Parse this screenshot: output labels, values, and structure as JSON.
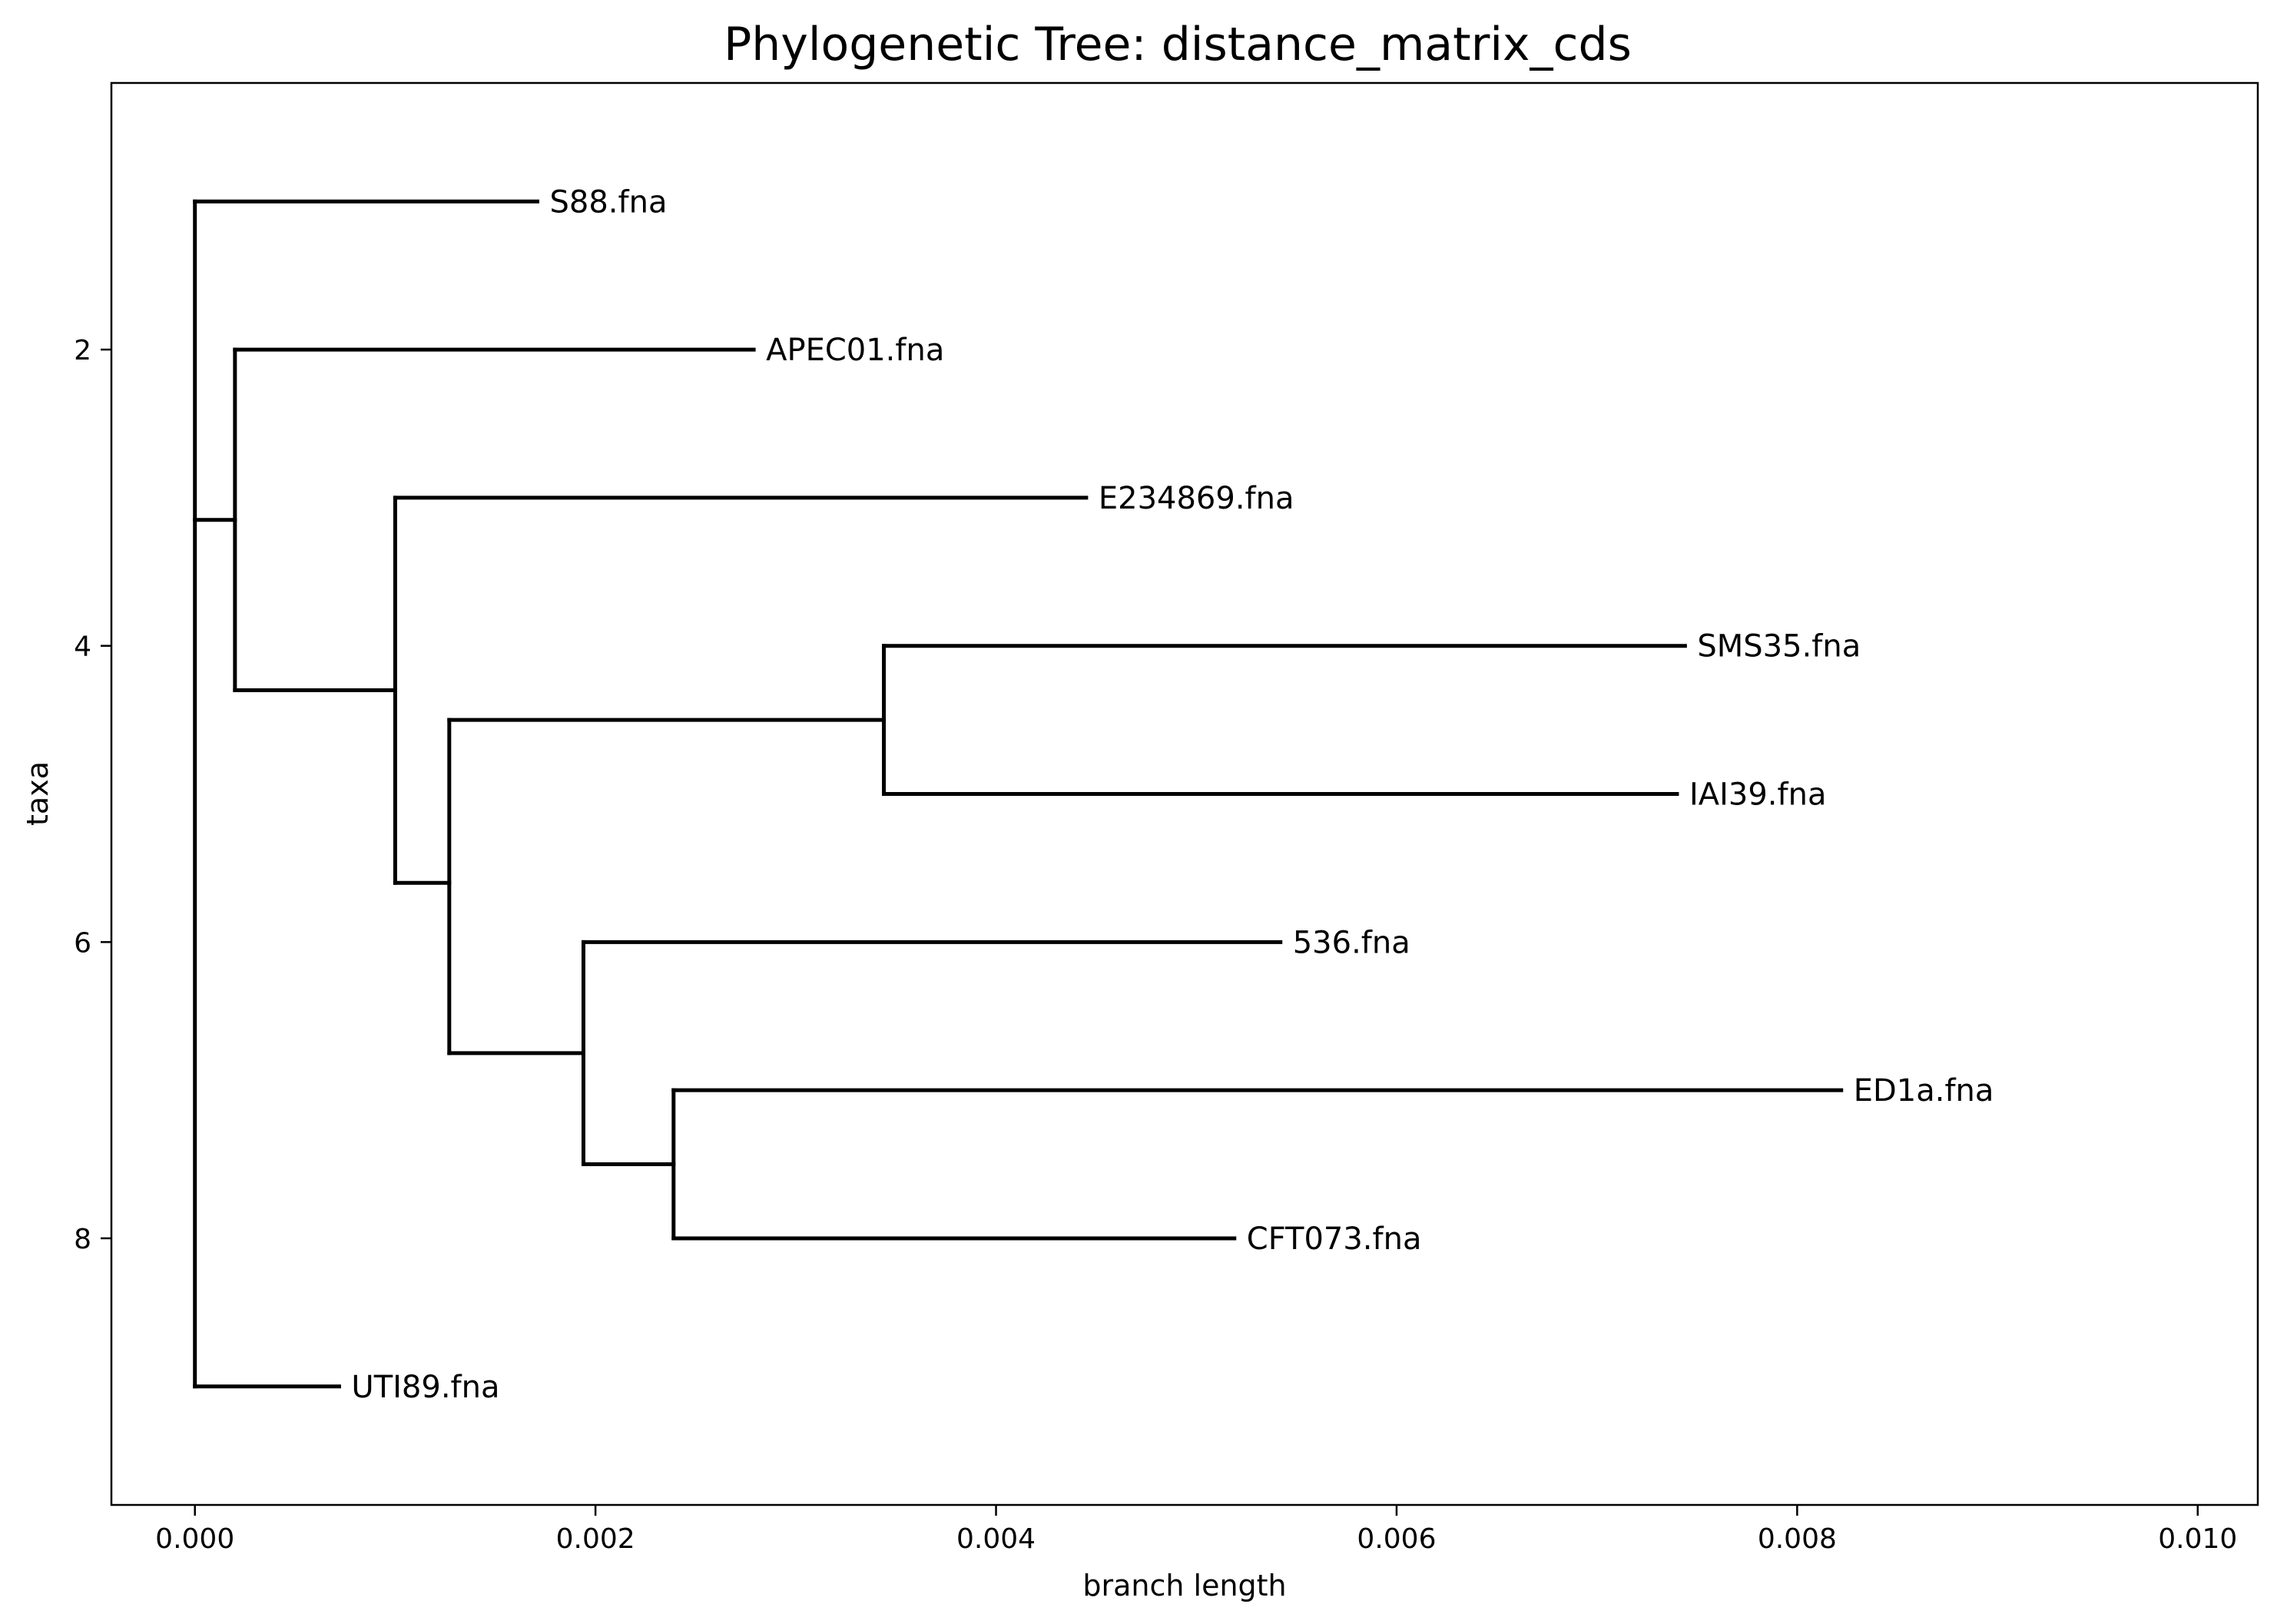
{
  "chart_data": {
    "type": "dendrogram",
    "title": "Phylogenetic Tree: distance_matrix_cds",
    "xlabel": "branch length",
    "ylabel": "taxa",
    "xlim": [
      -0.000417,
      0.0103
    ],
    "ylim": [
      9.8,
      0.2
    ],
    "x_ticks": [
      "0.000",
      "0.002",
      "0.004",
      "0.006",
      "0.008",
      "0.010"
    ],
    "x_tick_values": [
      0.0,
      0.002,
      0.004,
      0.006,
      0.008,
      0.01
    ],
    "y_ticks": [
      "2",
      "4",
      "6",
      "8"
    ],
    "y_tick_values": [
      2,
      4,
      6,
      8
    ],
    "grid": false,
    "nodes": [
      {
        "id": "root",
        "x": 0.0,
        "y": 5.0
      },
      {
        "id": "n1",
        "x": 0.0002,
        "y": 3.15
      },
      {
        "id": "n2",
        "x": 0.001,
        "y": 4.3
      },
      {
        "id": "n3",
        "x": 0.00127,
        "y": 5.6
      },
      {
        "id": "n4",
        "x": 0.00344,
        "y": 4.5
      },
      {
        "id": "n5",
        "x": 0.00194,
        "y": 6.75
      },
      {
        "id": "n6",
        "x": 0.00239,
        "y": 7.5
      },
      {
        "id": "S88",
        "x": 0.00171,
        "y": 1,
        "label": "S88.fna"
      },
      {
        "id": "APEC01",
        "x": 0.00279,
        "y": 2,
        "label": "APEC01.fna"
      },
      {
        "id": "E234869",
        "x": 0.00445,
        "y": 3,
        "label": "E234869.fna"
      },
      {
        "id": "SMS35",
        "x": 0.00744,
        "y": 4,
        "label": "SMS35.fna"
      },
      {
        "id": "IAI39",
        "x": 0.0074,
        "y": 5,
        "label": "IAI39.fna"
      },
      {
        "id": "536",
        "x": 0.00542,
        "y": 6,
        "label": "536.fna"
      },
      {
        "id": "ED1a",
        "x": 0.00822,
        "y": 7,
        "label": "ED1a.fna"
      },
      {
        "id": "CFT073",
        "x": 0.00519,
        "y": 8,
        "label": "CFT073.fna"
      },
      {
        "id": "UTI89",
        "x": 0.00072,
        "y": 9,
        "label": "UTI89.fna"
      }
    ],
    "edges": [
      [
        "root",
        "S88"
      ],
      [
        "root",
        "n1"
      ],
      [
        "root",
        "UTI89"
      ],
      [
        "n1",
        "APEC01"
      ],
      [
        "n1",
        "n2"
      ],
      [
        "n2",
        "E234869"
      ],
      [
        "n2",
        "n3"
      ],
      [
        "n3",
        "n4"
      ],
      [
        "n3",
        "n5"
      ],
      [
        "n4",
        "SMS35"
      ],
      [
        "n4",
        "IAI39"
      ],
      [
        "n5",
        "536"
      ],
      [
        "n5",
        "n6"
      ],
      [
        "n6",
        "ED1a"
      ],
      [
        "n6",
        "CFT073"
      ]
    ]
  }
}
